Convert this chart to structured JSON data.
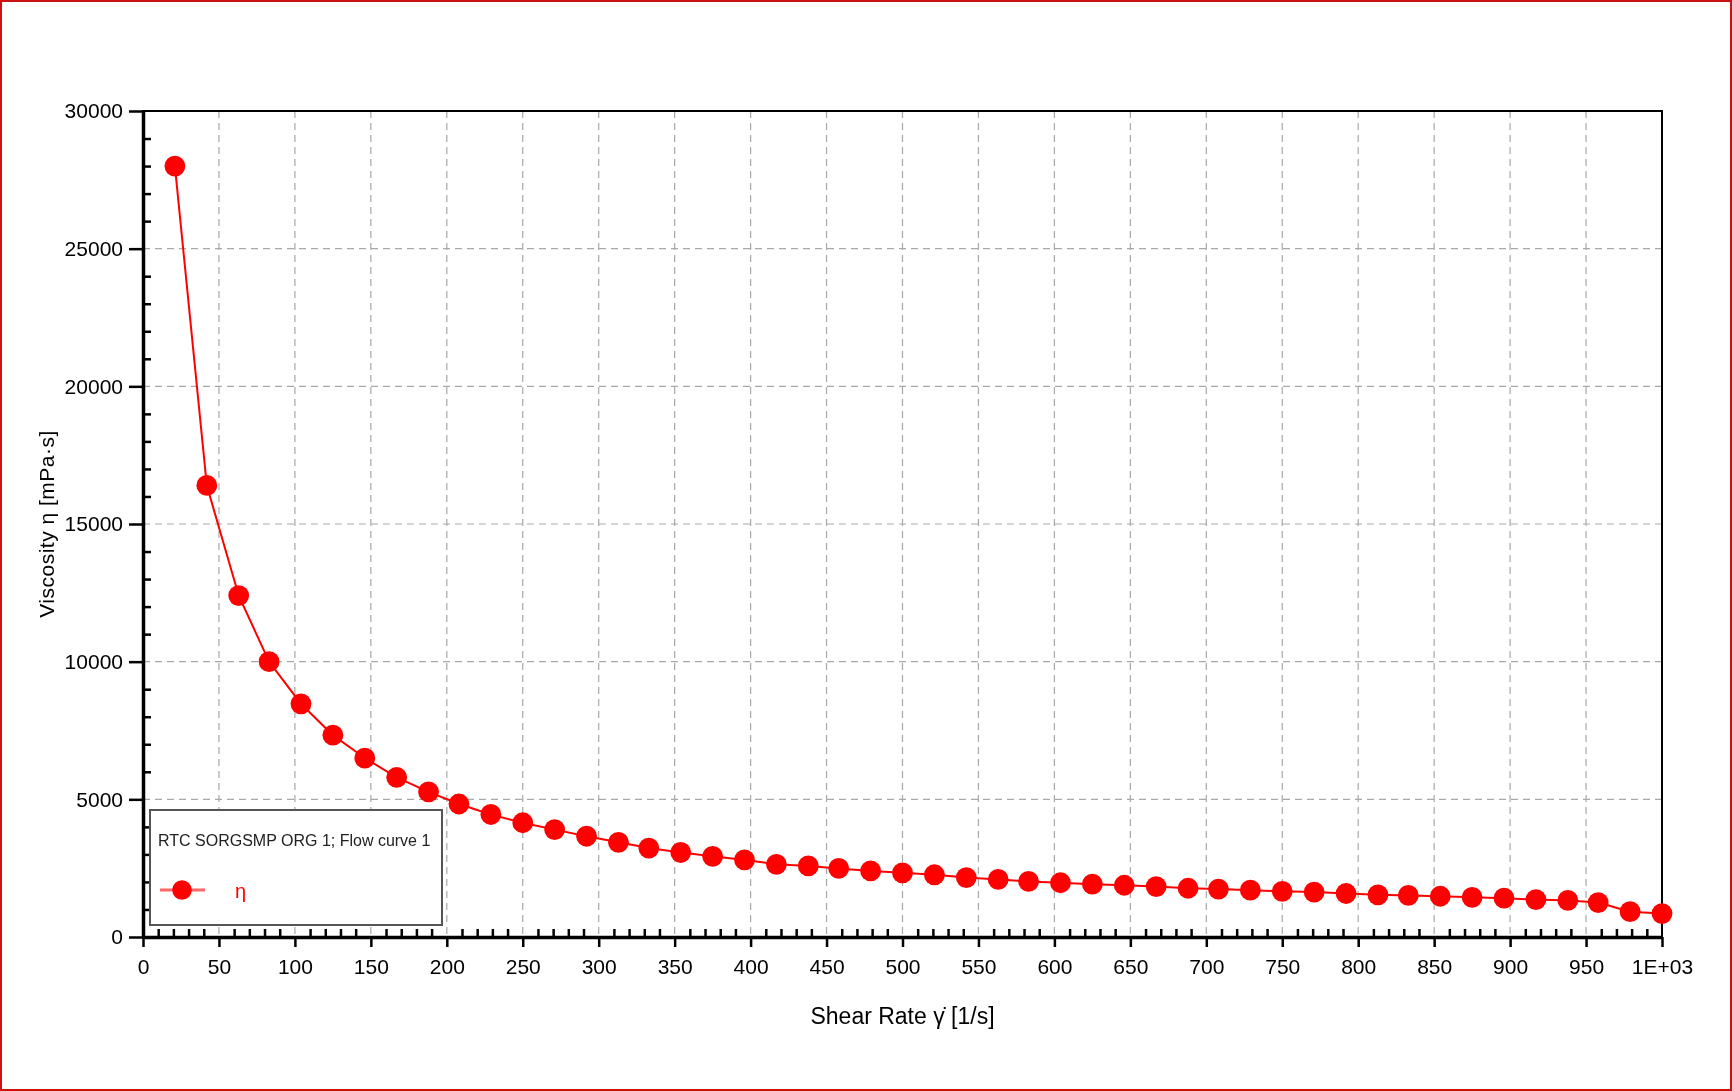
{
  "chart_data": {
    "type": "line",
    "xlabel": "Shear Rate γ̇ [1/s]",
    "ylabel": "Viscosity η [mPa·s]",
    "legend_title": "RTC SORGSMP ORG 1; Flow curve 1",
    "x": [
      21,
      42,
      63,
      83,
      104,
      125,
      146,
      167,
      188,
      208,
      229,
      250,
      271,
      292,
      313,
      333,
      354,
      375,
      396,
      417,
      438,
      458,
      479,
      500,
      521,
      542,
      563,
      583,
      604,
      625,
      646,
      667,
      688,
      708,
      729,
      750,
      771,
      792,
      813,
      833,
      854,
      875,
      896,
      917,
      938,
      958,
      979,
      1000
    ],
    "series": [
      {
        "name": "η",
        "color": "#ff0000",
        "values": [
          28000,
          16400,
          12400,
          10000,
          8470,
          7330,
          6500,
          5800,
          5270,
          4830,
          4450,
          4150,
          3900,
          3660,
          3440,
          3230,
          3070,
          2930,
          2800,
          2640,
          2580,
          2490,
          2400,
          2330,
          2260,
          2160,
          2090,
          2020,
          1970,
          1920,
          1880,
          1830,
          1770,
          1740,
          1700,
          1660,
          1630,
          1580,
          1530,
          1510,
          1480,
          1440,
          1410,
          1360,
          1330,
          1250,
          920,
          850
        ]
      }
    ],
    "xlim": [
      0,
      1000
    ],
    "ylim": [
      0,
      30000
    ],
    "xticks": [
      0,
      {
        "value": 10,
        "label": null
      },
      {
        "value": 20,
        "label": null
      },
      {
        "value": 30,
        "label": null
      },
      {
        "value": 40,
        "label": null
      },
      50,
      {
        "value": 60,
        "label": null
      },
      {
        "value": 70,
        "label": null
      },
      {
        "value": 80,
        "label": null
      },
      {
        "value": 90,
        "label": null
      },
      100,
      {
        "value": 110,
        "label": null
      },
      {
        "value": 120,
        "label": null
      },
      {
        "value": 130,
        "label": null
      },
      {
        "value": 140,
        "label": null
      },
      150,
      {
        "value": 160,
        "label": null
      },
      {
        "value": 170,
        "label": null
      },
      {
        "value": 180,
        "label": null
      },
      {
        "value": 190,
        "label": null
      },
      200,
      {
        "value": 210,
        "label": null
      },
      {
        "value": 220,
        "label": null
      },
      {
        "value": 230,
        "label": null
      },
      {
        "value": 240,
        "label": null
      },
      250,
      {
        "value": 260,
        "label": null
      },
      {
        "value": 270,
        "label": null
      },
      {
        "value": 280,
        "label": null
      },
      {
        "value": 290,
        "label": null
      },
      300,
      {
        "value": 310,
        "label": null
      },
      {
        "value": 320,
        "label": null
      },
      {
        "value": 330,
        "label": null
      },
      {
        "value": 340,
        "label": null
      },
      350,
      {
        "value": 360,
        "label": null
      },
      {
        "value": 370,
        "label": null
      },
      {
        "value": 380,
        "label": null
      },
      {
        "value": 390,
        "label": null
      },
      400,
      {
        "value": 410,
        "label": null
      },
      {
        "value": 420,
        "label": null
      },
      {
        "value": 430,
        "label": null
      },
      {
        "value": 440,
        "label": null
      },
      450,
      {
        "value": 460,
        "label": null
      },
      {
        "value": 470,
        "label": null
      },
      {
        "value": 480,
        "label": null
      },
      {
        "value": 490,
        "label": null
      },
      500,
      {
        "value": 510,
        "label": null
      },
      {
        "value": 520,
        "label": null
      },
      {
        "value": 530,
        "label": null
      },
      {
        "value": 540,
        "label": null
      },
      550,
      {
        "value": 560,
        "label": null
      },
      {
        "value": 570,
        "label": null
      },
      {
        "value": 580,
        "label": null
      },
      {
        "value": 590,
        "label": null
      },
      600,
      {
        "value": 610,
        "label": null
      },
      {
        "value": 620,
        "label": null
      },
      {
        "value": 630,
        "label": null
      },
      {
        "value": 640,
        "label": null
      },
      650,
      {
        "value": 660,
        "label": null
      },
      {
        "value": 670,
        "label": null
      },
      {
        "value": 680,
        "label": null
      },
      {
        "value": 690,
        "label": null
      },
      700,
      {
        "value": 710,
        "label": null
      },
      {
        "value": 720,
        "label": null
      },
      {
        "value": 730,
        "label": null
      },
      {
        "value": 740,
        "label": null
      },
      750,
      {
        "value": 760,
        "label": null
      },
      {
        "value": 770,
        "label": null
      },
      {
        "value": 780,
        "label": null
      },
      {
        "value": 790,
        "label": null
      },
      800,
      {
        "value": 810,
        "label": null
      },
      {
        "value": 820,
        "label": null
      },
      {
        "value": 830,
        "label": null
      },
      {
        "value": 840,
        "label": null
      },
      850,
      {
        "value": 860,
        "label": null
      },
      {
        "value": 870,
        "label": null
      },
      {
        "value": 880,
        "label": null
      },
      {
        "value": 890,
        "label": null
      },
      900,
      {
        "value": 910,
        "label": null
      },
      {
        "value": 920,
        "label": null
      },
      {
        "value": 930,
        "label": null
      },
      {
        "value": 940,
        "label": null
      },
      950,
      {
        "value": 960,
        "label": null
      },
      {
        "value": 970,
        "label": null
      },
      {
        "value": 980,
        "label": null
      },
      {
        "value": 990,
        "label": null
      },
      {
        "value": 1000,
        "label": "1E+03"
      }
    ],
    "yticks": [
      0,
      {
        "value": 1000,
        "label": null
      },
      {
        "value": 2000,
        "label": null
      },
      {
        "value": 3000,
        "label": null
      },
      {
        "value": 4000,
        "label": null
      },
      5000,
      {
        "value": 6000,
        "label": null
      },
      {
        "value": 7000,
        "label": null
      },
      {
        "value": 8000,
        "label": null
      },
      {
        "value": 9000,
        "label": null
      },
      10000,
      {
        "value": 11000,
        "label": null
      },
      {
        "value": 12000,
        "label": null
      },
      {
        "value": 13000,
        "label": null
      },
      {
        "value": 14000,
        "label": null
      },
      15000,
      {
        "value": 16000,
        "label": null
      },
      {
        "value": 17000,
        "label": null
      },
      {
        "value": 18000,
        "label": null
      },
      {
        "value": 19000,
        "label": null
      },
      20000,
      {
        "value": 21000,
        "label": null
      },
      {
        "value": 22000,
        "label": null
      },
      {
        "value": 23000,
        "label": null
      },
      {
        "value": 24000,
        "label": null
      },
      25000,
      {
        "value": 26000,
        "label": null
      },
      {
        "value": 27000,
        "label": null
      },
      {
        "value": 28000,
        "label": null
      },
      {
        "value": 29000,
        "label": null
      },
      30000
    ],
    "grid": true,
    "legend": "bottom left",
    "marker": "circle",
    "line_style": "solid"
  }
}
